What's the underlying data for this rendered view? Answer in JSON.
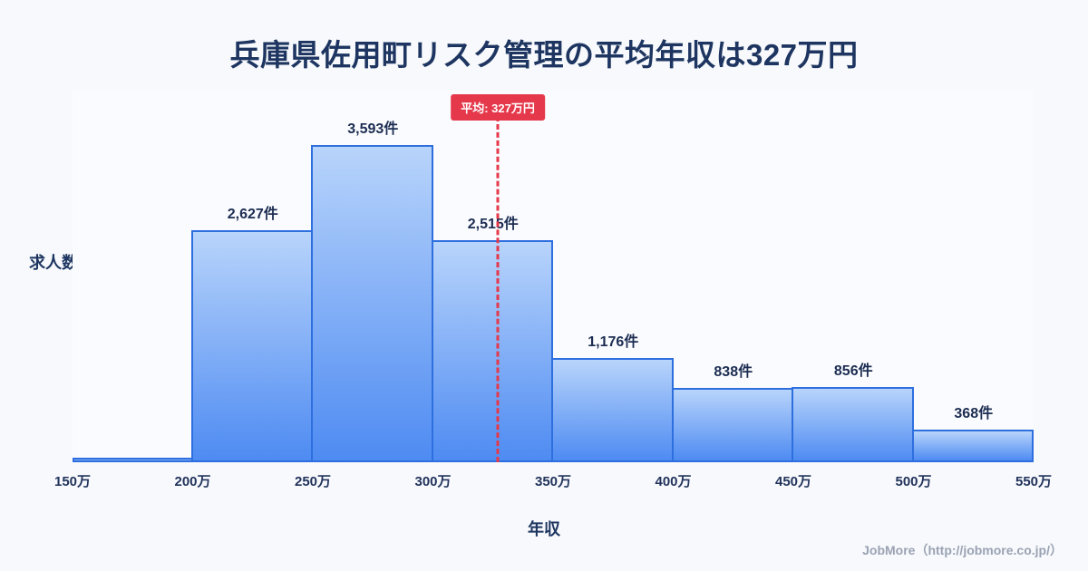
{
  "title": "兵庫県佐用町リスク管理の平均年収は327万円",
  "footer": {
    "credit": "JobMore（http://jobmore.co.jp/）"
  },
  "chart_data": {
    "type": "bar",
    "subtype": "histogram",
    "title": "兵庫県佐用町リスク管理の平均年収は327万円",
    "xlabel": "年収",
    "ylabel": "求人数",
    "bin_edges": [
      150,
      200,
      250,
      300,
      350,
      400,
      450,
      500,
      550
    ],
    "bin_edges_labels": [
      "150万",
      "200万",
      "250万",
      "300万",
      "350万",
      "400万",
      "450万",
      "500万",
      "550万"
    ],
    "values": [
      51,
      2627,
      3593,
      2515,
      1176,
      838,
      856,
      368
    ],
    "value_labels": [
      "",
      "2,627件",
      "3,593件",
      "2,515件",
      "1,176件",
      "838件",
      "856件",
      "368件"
    ],
    "average": 327,
    "average_label": "平均: 327万円",
    "x_range": [
      150,
      550
    ],
    "legend": "none",
    "grid": "off",
    "colors": {
      "bar_gradient_top": "#b8d4fb",
      "bar_gradient_bottom": "#4e8bf2",
      "bar_border": "#2e6fdf",
      "average_accent": "#e5394b",
      "text_dark": "#1d3560",
      "footer_gray": "#9aa2b3",
      "background": "#f7f9fc"
    }
  }
}
